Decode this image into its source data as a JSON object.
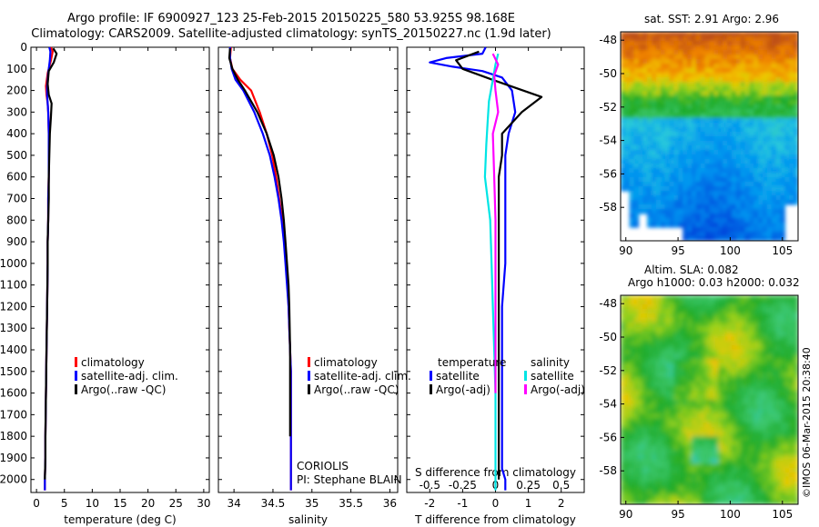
{
  "title_line1": "Argo profile: IF 6900927_123 25-Feb-2015 20150225_580 53.925S 98.168E",
  "title_line2": "Climatology: CARS2009. Satellite-adjusted climatology: synTS_20150227.nc (1.9d later)",
  "stamp": "©IMOS 06-Mar-2015 20:38:40",
  "colors": {
    "climatology": "#ff0000",
    "satellite": "#0000ff",
    "argo": "#000000",
    "satellite_sal_diff": "#00e5e5",
    "argo_sal_diff": "#ff00ff"
  },
  "depth_axis": {
    "ticks": [
      0,
      100,
      200,
      300,
      400,
      500,
      600,
      700,
      800,
      900,
      1000,
      1100,
      1200,
      1300,
      1400,
      1500,
      1600,
      1700,
      1800,
      1900,
      2000
    ]
  },
  "temperature_panel": {
    "xlabel": "temperature (deg C)",
    "xticks": [
      "0",
      "5",
      "10",
      "15",
      "20",
      "25",
      "30"
    ],
    "legend": [
      "climatology",
      "satellite-adj. clim.",
      "Argo(..raw -QC)"
    ]
  },
  "salinity_panel": {
    "xlabel": "salinity",
    "xticks": [
      "34",
      "34.5",
      "35",
      "35.5",
      "36"
    ],
    "legend": [
      "climatology",
      "satellite-adj. clim.",
      "Argo(..raw -QC)"
    ],
    "annotation_1": "CORIOLIS",
    "annotation_2": "PI: Stephane BLAIN"
  },
  "difference_panel": {
    "top_label": "S difference from climatology",
    "top_ticks": [
      "-0.5",
      "-0.25",
      "0",
      "0.25",
      "0.5"
    ],
    "xlabel": "T difference from climatology",
    "xticks": [
      "-2",
      "-1",
      "0",
      "1",
      "2"
    ],
    "legend_temperature_title": "temperature",
    "legend_salinity_title": "salinity",
    "legend_t": [
      "satellite",
      "Argo(-adj)"
    ],
    "legend_s": [
      "satellite",
      "Argo(-adj)"
    ]
  },
  "sst_map": {
    "title": "sat. SST: 2.91  Argo: 2.96",
    "yticks": [
      "-48",
      "-50",
      "-52",
      "-54",
      "-56",
      "-58"
    ],
    "xticks": [
      "90",
      "95",
      "100",
      "105"
    ]
  },
  "sla_map": {
    "title_line1": "Altim. SLA: 0.082",
    "title_line2": "Argo h1000: 0.03 h2000: 0.032",
    "yticks": [
      "-48",
      "-50",
      "-52",
      "-54",
      "-56",
      "-58"
    ],
    "xticks": [
      "90",
      "95",
      "100",
      "105"
    ]
  },
  "chart_data": [
    {
      "type": "line",
      "title": "",
      "xlabel": "temperature (deg C)",
      "ylabel": "",
      "xlim": [
        -1,
        31
      ],
      "ylim": [
        2060,
        0
      ],
      "series": [
        {
          "name": "climatology",
          "x": [
            2.6,
            2.9,
            2.6,
            2.0,
            1.7,
            1.8,
            2.0,
            2.1,
            2.2,
            2.2,
            2.2,
            2.1,
            2.1,
            2.0,
            2.0,
            1.9,
            1.8,
            1.7,
            1.6,
            1.6,
            1.5,
            1.5
          ],
          "y": [
            0,
            20,
            60,
            120,
            180,
            220,
            260,
            300,
            400,
            500,
            600,
            700,
            800,
            900,
            1000,
            1200,
            1400,
            1600,
            1800,
            1900,
            2000,
            2050
          ]
        },
        {
          "name": "satellite-adj. clim.",
          "x": [
            2.3,
            2.5,
            2.4,
            2.1,
            1.9,
            1.9,
            2.0,
            2.1,
            2.2,
            2.2,
            2.2,
            2.1,
            2.1,
            2.0,
            2.0,
            1.9,
            1.8,
            1.7,
            1.6,
            1.6,
            1.5,
            1.5
          ],
          "y": [
            0,
            20,
            60,
            120,
            180,
            220,
            260,
            300,
            400,
            500,
            600,
            700,
            800,
            900,
            1000,
            1200,
            1400,
            1600,
            1800,
            1900,
            2000,
            2050
          ]
        },
        {
          "name": "Argo(..raw -QC)",
          "x": [
            3.0,
            3.6,
            3.1,
            2.2,
            2.0,
            2.2,
            2.7,
            2.6,
            2.4,
            2.3,
            2.2,
            2.2,
            2.1,
            2.0,
            2.0,
            1.9,
            1.8,
            1.7,
            1.6,
            1.6,
            1.5
          ],
          "y": [
            5,
            30,
            70,
            110,
            170,
            220,
            260,
            320,
            400,
            500,
            600,
            700,
            800,
            900,
            1000,
            1200,
            1400,
            1600,
            1800,
            1900,
            2000
          ]
        }
      ]
    },
    {
      "type": "line",
      "title": "",
      "xlabel": "salinity",
      "ylabel": "",
      "xlim": [
        33.8,
        36.1
      ],
      "ylim": [
        2060,
        0
      ],
      "series": [
        {
          "name": "climatology",
          "x": [
            33.96,
            33.95,
            33.98,
            34.08,
            34.22,
            34.33,
            34.42,
            34.49,
            34.54,
            34.58,
            34.62,
            34.65,
            34.67,
            34.69,
            34.7,
            34.71,
            34.72,
            34.73,
            34.73,
            34.73,
            34.73,
            34.73
          ],
          "y": [
            0,
            50,
            100,
            150,
            200,
            300,
            400,
            500,
            600,
            700,
            800,
            900,
            1000,
            1100,
            1200,
            1300,
            1400,
            1500,
            1600,
            1800,
            2000,
            2050
          ]
        },
        {
          "name": "satellite-adj. clim.",
          "x": [
            33.95,
            33.95,
            33.97,
            34.02,
            34.12,
            34.26,
            34.37,
            34.46,
            34.52,
            34.57,
            34.61,
            34.64,
            34.66,
            34.68,
            34.7,
            34.71,
            34.72,
            34.73,
            34.73,
            34.73,
            34.73,
            34.73
          ],
          "y": [
            0,
            50,
            100,
            150,
            200,
            300,
            400,
            500,
            600,
            700,
            800,
            900,
            1000,
            1100,
            1200,
            1300,
            1400,
            1500,
            1600,
            1800,
            2000,
            2050
          ]
        },
        {
          "name": "Argo(..raw -QC)",
          "x": [
            33.95,
            33.94,
            33.98,
            34.05,
            34.14,
            34.3,
            34.42,
            34.51,
            34.57,
            34.61,
            34.64,
            34.66,
            34.68,
            34.7,
            34.71,
            34.72,
            34.72,
            34.72
          ],
          "y": [
            5,
            50,
            100,
            150,
            200,
            300,
            400,
            500,
            600,
            700,
            800,
            900,
            1000,
            1100,
            1200,
            1400,
            1600,
            1800
          ]
        }
      ]
    },
    {
      "type": "line",
      "title": "",
      "xlabel": "T difference from climatology",
      "ylabel": "",
      "xlim": [
        -2.7,
        2.7
      ],
      "ylim": [
        2060,
        0
      ],
      "series": [
        {
          "name": "temperature satellite",
          "x": [
            -0.3,
            -0.4,
            -1.5,
            -2.0,
            -1.3,
            -0.4,
            0.2,
            0.5,
            0.6,
            0.4,
            0.3,
            0.3,
            0.3,
            0.3,
            0.2,
            0.2,
            0.2,
            0.2,
            0.2,
            0.2,
            0.3,
            0.3
          ],
          "y": [
            0,
            30,
            50,
            70,
            90,
            110,
            140,
            200,
            300,
            400,
            500,
            600,
            800,
            1000,
            1200,
            1400,
            1600,
            1800,
            1900,
            1950,
            2000,
            2050
          ]
        },
        {
          "name": "temperature Argo(-adj)",
          "x": [
            -0.5,
            -1.2,
            -1.0,
            -0.1,
            1.4,
            0.8,
            0.2,
            0.2,
            0.1,
            0.1,
            0.1,
            0.1,
            0.1,
            0.1,
            0.1,
            0.1,
            0.1
          ],
          "y": [
            20,
            60,
            100,
            150,
            230,
            300,
            400,
            500,
            600,
            800,
            1000,
            1200,
            1400,
            1600,
            1800,
            1900,
            2000
          ]
        }
      ],
      "salinity_difference_series": [
        {
          "name": "salinity satellite",
          "s": [
            0.02,
            0.0,
            -0.02,
            -0.05,
            -0.06,
            -0.07,
            -0.08,
            -0.06,
            -0.04,
            -0.03,
            -0.02,
            -0.01,
            0.0,
            0.0,
            0.0,
            0.0
          ],
          "y": [
            30,
            80,
            150,
            250,
            350,
            450,
            600,
            700,
            800,
            1000,
            1200,
            1400,
            1600,
            1800,
            2000,
            2050
          ]
        },
        {
          "name": "salinity Argo(-adj)",
          "s": [
            -0.02,
            0.02,
            -0.01,
            0.0,
            0.02,
            -0.02,
            -0.01,
            0.0,
            0.0,
            0.0,
            0.0,
            0.0
          ],
          "y": [
            30,
            80,
            130,
            200,
            300,
            400,
            600,
            800,
            1000,
            1200,
            1400,
            1600
          ]
        }
      ]
    },
    {
      "type": "heatmap",
      "title": "sat. SST: 2.91  Argo: 2.96",
      "xlim": [
        89.5,
        106.5
      ],
      "ylim": [
        -60,
        -47.5
      ]
    },
    {
      "type": "heatmap",
      "title": "Altim. SLA: 0.082",
      "xlim": [
        89.5,
        106.5
      ],
      "ylim": [
        -60,
        -47.5
      ]
    }
  ]
}
